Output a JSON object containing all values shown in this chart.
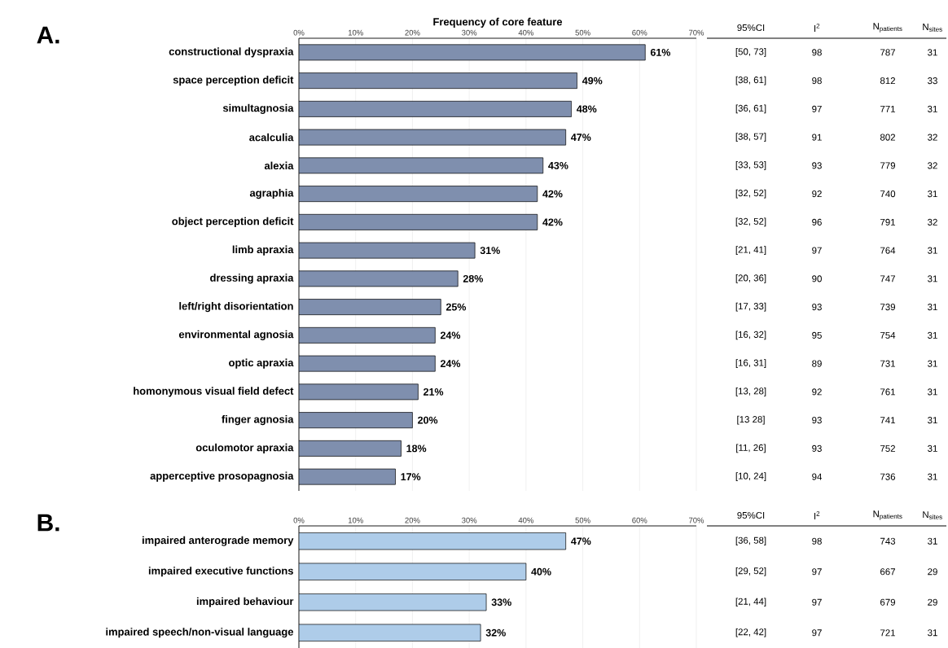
{
  "chart_data": [
    {
      "type": "bar",
      "title": "A.",
      "xlabel": "Frequency of core feature",
      "orientation": "horizontal",
      "categories": [
        "constructional dyspraxia",
        "space perception deficit",
        "simultagnosia",
        "acalculia",
        "alexia",
        "agraphia",
        "object perception deficit",
        "limb apraxia",
        "dressing apraxia",
        "left/right disorientation",
        "environmental agnosia",
        "optic apraxia",
        "homonymous visual field defect",
        "finger agnosia",
        "oculomotor apraxia",
        "apperceptive prosopagnosia"
      ],
      "values": [
        61,
        49,
        48,
        47,
        43,
        42,
        42,
        31,
        28,
        25,
        24,
        24,
        21,
        20,
        18,
        17
      ],
      "value_labels": [
        "61%",
        "49%",
        "48%",
        "47%",
        "43%",
        "42%",
        "42%",
        "31%",
        "28%",
        "25%",
        "24%",
        "24%",
        "21%",
        "20%",
        "18%",
        "17%"
      ],
      "color": "#7f8fae",
      "xlim": [
        0,
        70
      ],
      "xticks": [
        {
          "value": 0,
          "label": "0%"
        },
        {
          "value": 10,
          "label": "10%"
        },
        {
          "value": 20,
          "label": "20%"
        },
        {
          "value": 30,
          "label": "30%"
        },
        {
          "value": 40,
          "label": "40%"
        },
        {
          "value": 50,
          "label": "50%"
        },
        {
          "value": 60,
          "label": "60%"
        },
        {
          "value": 70,
          "label": "70%"
        }
      ],
      "grid": "x"
    },
    {
      "type": "other",
      "categories": [
        "95%CI",
        "I$^{2}$",
        "N$_{patients}$",
        "N$_{sites}$"
      ],
      "annotations": [
        "[50, 73]",
        "98",
        "787",
        "31",
        "[38, 61]",
        "98",
        "812",
        "33",
        "[36, 61]",
        "97",
        "771",
        "31",
        "[38, 57]",
        "91",
        "802",
        "32",
        "[33, 53]",
        "93",
        "779",
        "32",
        "[32, 52]",
        "92",
        "740",
        "31",
        "[32, 52]",
        "96",
        "791",
        "32",
        "[21, 41]",
        "97",
        "764",
        "31",
        "[20, 36]",
        "90",
        "747",
        "31",
        "[17, 33]",
        "93",
        "739",
        "31",
        "[16, 32]",
        "95",
        "754",
        "31",
        "[16, 31]",
        "89",
        "731",
        "31",
        "[13, 28]",
        "92",
        "761",
        "31",
        "[13 28]",
        "93",
        "741",
        "31",
        "[11, 26]",
        "93",
        "752",
        "31",
        "[10, 24]",
        "94",
        "736",
        "31"
      ]
    },
    {
      "type": "bar",
      "title": "B.",
      "orientation": "horizontal",
      "categories": [
        "impaired anterograde memory",
        "impaired executive functions",
        "impaired behaviour",
        "impaired speech/non-visual language"
      ],
      "values": [
        47,
        40,
        33,
        32
      ],
      "value_labels": [
        "47%",
        "40%",
        "33%",
        "32%"
      ],
      "color": "#aecce9",
      "xlim": [
        0,
        70
      ],
      "xticks": [
        {
          "value": 0,
          "label": "0%"
        },
        {
          "value": 10,
          "label": "10%"
        },
        {
          "value": 20,
          "label": "20%"
        },
        {
          "value": 30,
          "label": "30%"
        },
        {
          "value": 40,
          "label": "40%"
        },
        {
          "value": 50,
          "label": "50%"
        },
        {
          "value": 60,
          "label": "60%"
        },
        {
          "value": 70,
          "label": "70%"
        }
      ],
      "grid": "x"
    },
    {
      "type": "other",
      "categories": [
        "95%CI",
        "I$^{2}$",
        "N$_{patients}$",
        "N$_{sites}$"
      ],
      "annotations": [
        "[36, 58]",
        "98",
        "743",
        "31",
        "[29, 52]",
        "97",
        "667",
        "29",
        "[21, 44]",
        "97",
        "679",
        "29",
        "[22, 42]",
        "97",
        "721",
        "31"
      ]
    }
  ]
}
